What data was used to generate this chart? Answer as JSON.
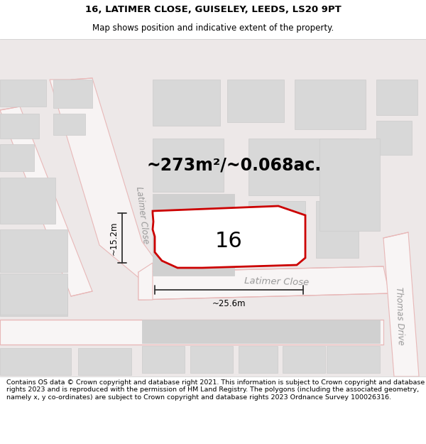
{
  "title": "16, LATIMER CLOSE, GUISELEY, LEEDS, LS20 9PT",
  "subtitle": "Map shows position and indicative extent of the property.",
  "footer": "Contains OS data © Crown copyright and database right 2021. This information is subject to Crown copyright and database rights 2023 and is reproduced with the permission of HM Land Registry. The polygons (including the associated geometry, namely x, y co-ordinates) are subject to Crown copyright and database rights 2023 Ordnance Survey 100026316.",
  "area_label": "~273m²/~0.068ac.",
  "number_label": "16",
  "width_label": "~25.6m",
  "height_label": "~15.2m",
  "street_label_h": "Latimer Close",
  "street_label_v": "Latimer Close",
  "street_label_r": "Thomas Drive",
  "map_bg": "#ede8e8",
  "road_fill": "#f7f3f3",
  "building_color": "#d8d8d8",
  "building_outline": "#cccccc",
  "road_outline": "#e8b8b8",
  "property_outline": "#cc0000",
  "property_fill": "#ffffff",
  "dim_color": "#333333",
  "title_fontsize": 9.5,
  "subtitle_fontsize": 8.5,
  "footer_fontsize": 6.8,
  "area_fontsize": 17,
  "number_fontsize": 22,
  "street_fontsize": 9.5,
  "dim_fontsize": 8.5
}
